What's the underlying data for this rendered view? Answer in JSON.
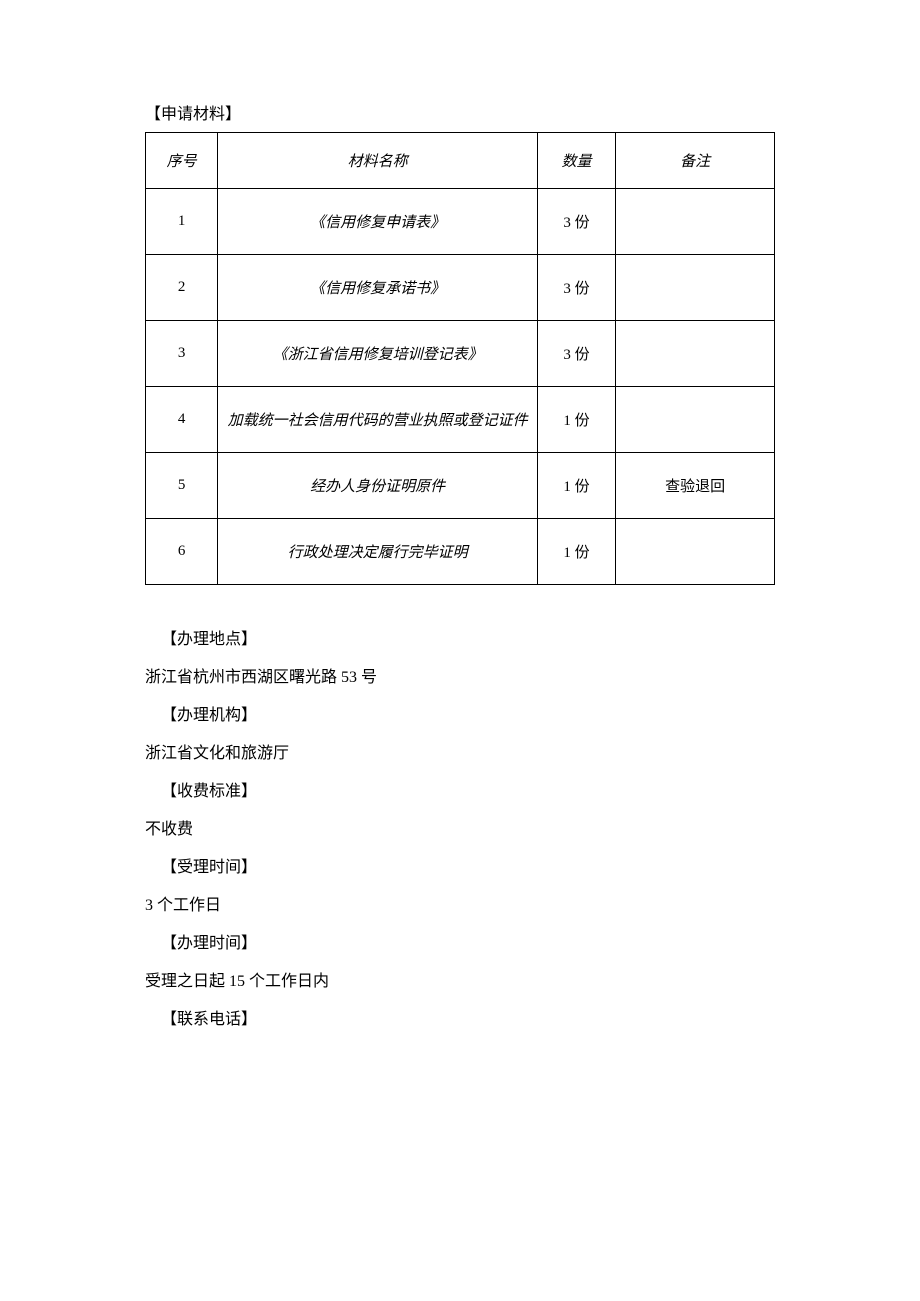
{
  "headings": {
    "materials": "【申请材料】"
  },
  "table": {
    "headers": {
      "seq": "序号",
      "name": "材料名称",
      "qty": "数量",
      "note": "备注"
    },
    "rows": [
      {
        "seq": "1",
        "name": "《信用修复申请表》",
        "qty": "3 份",
        "note": ""
      },
      {
        "seq": "2",
        "name": "《信用修复承诺书》",
        "qty": "3 份",
        "note": ""
      },
      {
        "seq": "3",
        "name": "《浙江省信用修复培训登记表》",
        "qty": "3 份",
        "note": ""
      },
      {
        "seq": "4",
        "name": "加载统一社会信用代码的营业执照或登记证件",
        "qty": "1 份",
        "note": ""
      },
      {
        "seq": "5",
        "name": "经办人身份证明原件",
        "qty": "1 份",
        "note": "查验退回"
      },
      {
        "seq": "6",
        "name": "行政处理决定履行完毕证明",
        "qty": "1 份",
        "note": ""
      }
    ]
  },
  "info": {
    "location_label": "【办理地点】",
    "location_value": "浙江省杭州市西湖区曙光路 53 号",
    "agency_label": "【办理机构】",
    "agency_value": "浙江省文化和旅游厅",
    "fee_label": "【收费标准】",
    "fee_value": "不收费",
    "accept_time_label": "【受理时间】",
    "accept_time_value": "3 个工作日",
    "process_time_label": "【办理时间】",
    "process_time_value": "受理之日起 15 个工作日内",
    "phone_label": "【联系电话】"
  },
  "colors": {
    "text": "#000000",
    "background": "#ffffff",
    "border": "#000000"
  }
}
